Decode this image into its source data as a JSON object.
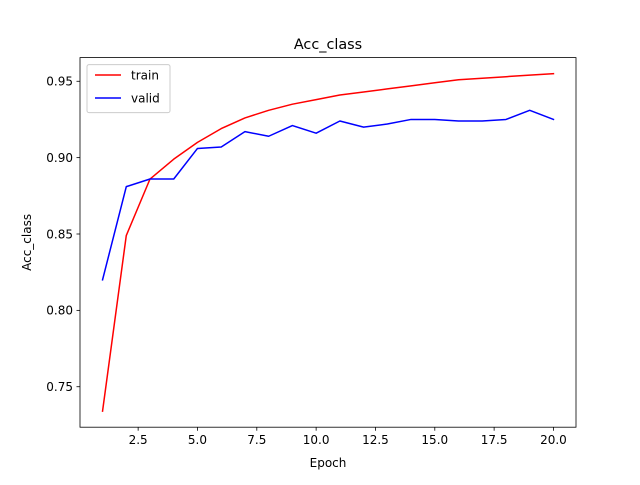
{
  "chart_data": {
    "type": "line",
    "title": "Acc_class",
    "xlabel": "Epoch",
    "ylabel": "Acc_class",
    "xlim": [
      0.05,
      20.95
    ],
    "ylim": [
      0.7235,
      0.9655
    ],
    "xticks": [
      2.5,
      5.0,
      7.5,
      10.0,
      12.5,
      15.0,
      17.5,
      20.0
    ],
    "xtick_labels": [
      "2.5",
      "5.0",
      "7.5",
      "10.0",
      "12.5",
      "15.0",
      "17.5",
      "20.0"
    ],
    "yticks": [
      0.75,
      0.8,
      0.85,
      0.9,
      0.95
    ],
    "ytick_labels": [
      "0.75",
      "0.80",
      "0.85",
      "0.90",
      "0.95"
    ],
    "grid": false,
    "legend": "upper left",
    "x": [
      1,
      2,
      3,
      4,
      5,
      6,
      7,
      8,
      9,
      10,
      11,
      12,
      13,
      14,
      15,
      16,
      17,
      18,
      19,
      20
    ],
    "series": [
      {
        "name": "train",
        "color": "#ff0000",
        "values": [
          0.734,
          0.849,
          0.886,
          0.899,
          0.91,
          0.919,
          0.926,
          0.931,
          0.935,
          0.938,
          0.941,
          0.943,
          0.945,
          0.947,
          0.949,
          0.951,
          0.952,
          0.953,
          0.954,
          0.955
        ]
      },
      {
        "name": "valid",
        "color": "#0000ff",
        "values": [
          0.82,
          0.881,
          0.886,
          0.886,
          0.906,
          0.907,
          0.917,
          0.914,
          0.921,
          0.916,
          0.924,
          0.92,
          0.922,
          0.925,
          0.925,
          0.924,
          0.924,
          0.925,
          0.931,
          0.925
        ]
      }
    ]
  }
}
